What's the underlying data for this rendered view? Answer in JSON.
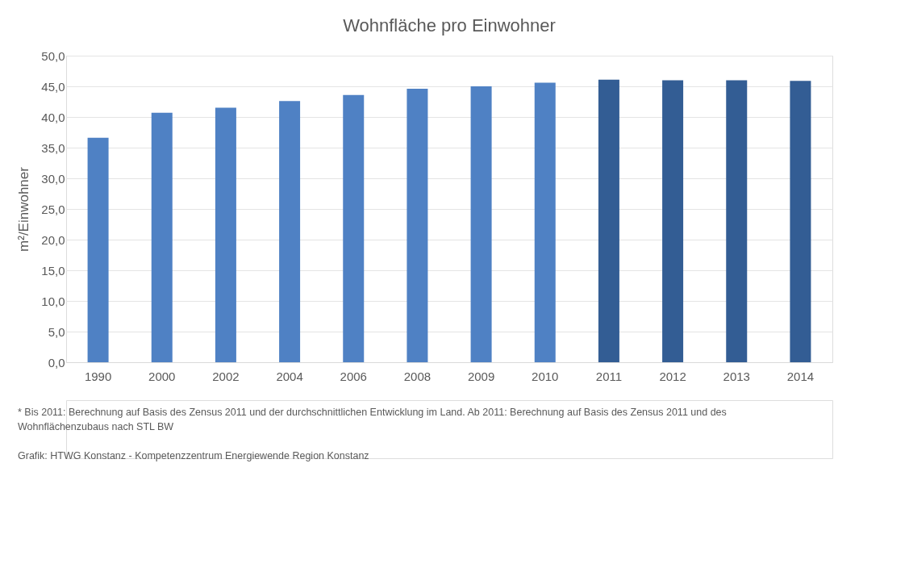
{
  "chart_data": {
    "type": "bar",
    "title": "Wohnfläche pro Einwohner",
    "ylabel": "m²/Einwohner",
    "categories": [
      "1990",
      "2000",
      "2002",
      "2004",
      "2006",
      "2008",
      "2009",
      "2010",
      "2011",
      "2012",
      "2013",
      "2014"
    ],
    "values": [
      36.6,
      40.7,
      41.5,
      42.6,
      43.6,
      44.6,
      45.0,
      45.6,
      46.1,
      46.0,
      46.0,
      45.9
    ],
    "colors": [
      "#4f81c4",
      "#4f81c4",
      "#4f81c4",
      "#4f81c4",
      "#4f81c4",
      "#4f81c4",
      "#4f81c4",
      "#4f81c4",
      "#335d94",
      "#335d94",
      "#335d94",
      "#335d94"
    ],
    "ylim": [
      0,
      50
    ],
    "yticks": [
      {
        "value": 0,
        "label": "0,0"
      },
      {
        "value": 5,
        "label": "5,0"
      },
      {
        "value": 10,
        "label": "10,0"
      },
      {
        "value": 15,
        "label": "15,0"
      },
      {
        "value": 20,
        "label": "20,0"
      },
      {
        "value": 25,
        "label": "25,0"
      },
      {
        "value": 30,
        "label": "30,0"
      },
      {
        "value": 35,
        "label": "35,0"
      },
      {
        "value": 40,
        "label": "40,0"
      },
      {
        "value": 45,
        "label": "45,0"
      },
      {
        "value": 50,
        "label": "50,0"
      }
    ],
    "grid": "y",
    "annotations": [
      "* Bis 2011: Berechnung auf Basis des Zensus 2011 und der durchschnittlichen Entwicklung im Land. Ab 2011: Berechnung auf Basis des Zensus 2011 und des Wohnflächenzubaus nach STL BW",
      "Grafik: HTWG Konstanz - Kompetenzzentrum Energiewende Region Konstanz"
    ]
  }
}
